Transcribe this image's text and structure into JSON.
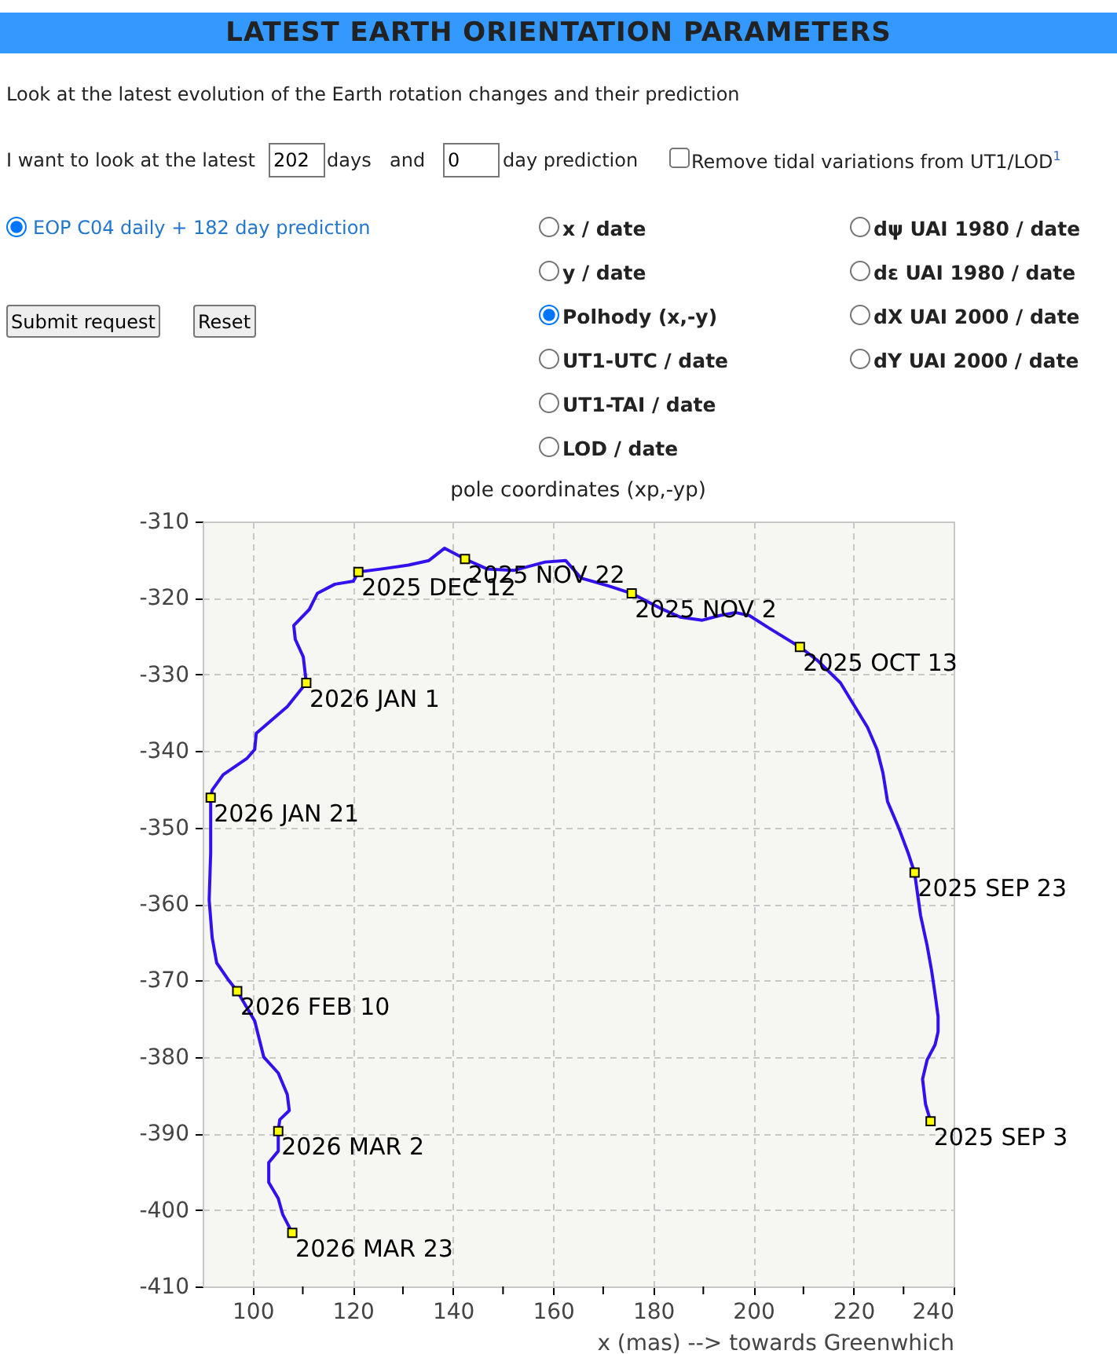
{
  "chart_data": {
    "type": "line",
    "title": "pole coordinates (xp,-yp)",
    "xlabel": "x (mas) --> towards Greenwhich",
    "xlim": [
      90,
      240
    ],
    "ylim": [
      -410,
      -310
    ],
    "xticks": [
      100,
      {
        "value": 110,
        "label": null
      },
      120,
      {
        "value": 130,
        "label": null
      },
      140,
      {
        "value": 150,
        "label": null
      },
      160,
      {
        "value": 170,
        "label": null
      },
      180,
      {
        "value": 190,
        "label": null
      },
      200,
      {
        "value": 210,
        "label": null
      },
      220,
      {
        "value": 230,
        "label": null
      },
      240
    ],
    "yticks": [
      -410,
      -400,
      -390,
      -380,
      -370,
      -360,
      -350,
      -340,
      -330,
      -320,
      -310
    ],
    "grid": true,
    "series": [
      {
        "color": "#3311ee",
        "marker": "none",
        "x": [
          235.4,
          234.4,
          233.8,
          234.7,
          236.3,
          236.9,
          236.9,
          236.3,
          235.6,
          234.7,
          233.4,
          232.2,
          230.9,
          229.0,
          226.8,
          225.9,
          224.7,
          222.8,
          219.9,
          217.4,
          212.7,
          209.3,
          203.3,
          199.2,
          196.4,
          193.3,
          189.8,
          185.4,
          181.3,
          175.7,
          171.0,
          165.6,
          162.5,
          158.4,
          152.1,
          146.8,
          142.4,
          138.3,
          135.2,
          131.1,
          125.8,
          121.1,
          120.1,
          116.4,
          112.9,
          111.3,
          108.2,
          108.5,
          110.1,
          110.7,
          106.9,
          100.7,
          100.4,
          98.8,
          94.1,
          91.9,
          91.6,
          91.6,
          91.3,
          91.9,
          92.8,
          95.0,
          96.9,
          100.4,
          102.2,
          105.1,
          106.9,
          107.3,
          105.4,
          105.1,
          105.1,
          103.2,
          103.2,
          105.1,
          106.0,
          107.9
        ],
        "values": [
          -388.4,
          -386.2,
          -382.9,
          -380.4,
          -378.4,
          -376.7,
          -374.7,
          -371.8,
          -368.7,
          -365.4,
          -361.5,
          -355.9,
          -353.3,
          -350.0,
          -346.6,
          -342.9,
          -339.8,
          -336.9,
          -333.8,
          -331.1,
          -328.1,
          -326.4,
          -324.0,
          -322.3,
          -321.9,
          -322.3,
          -322.9,
          -322.5,
          -321.3,
          -319.4,
          -318.4,
          -317.4,
          -315.1,
          -315.3,
          -316.4,
          -316.2,
          -314.9,
          -313.5,
          -315.1,
          -315.7,
          -316.2,
          -316.6,
          -317.8,
          -318.2,
          -319.4,
          -321.5,
          -323.6,
          -325.4,
          -327.7,
          -331.1,
          -334.2,
          -337.7,
          -339.8,
          -341.0,
          -343.1,
          -345.1,
          -346.1,
          -353.3,
          -359.5,
          -364.4,
          -367.7,
          -369.8,
          -371.4,
          -375.3,
          -380.0,
          -382.1,
          -384.9,
          -387.0,
          -388.2,
          -389.7,
          -392.3,
          -393.8,
          -396.4,
          -398.5,
          -400.6,
          -403.0
        ]
      },
      {
        "type": "scatter",
        "color": "#ffff00",
        "marker": "square",
        "x": [
          235.4,
          232.2,
          209.3,
          175.7,
          142.4,
          121.1,
          110.7,
          91.6,
          96.9,
          105.1,
          107.9
        ],
        "values": [
          -388.4,
          -355.9,
          -326.4,
          -319.4,
          -314.9,
          -316.6,
          -331.1,
          -346.1,
          -371.4,
          -389.7,
          -403.0
        ]
      }
    ],
    "annotations": [
      "LATEST EARTH ORIENTATION PARAMETERS",
      "Look at the latest evolution of the Earth rotation changes and their prediction",
      "I want to look at the latest",
      "202",
      "days",
      "and",
      "0",
      "day prediction",
      "Remove tidal variations from UT1/LOD$^{1}$",
      "EOP C04 daily + 182 day prediction",
      "Submit request",
      "Reset",
      "x / date",
      "y / date",
      "Polhody (x,-y)",
      "UT1-UTC / date",
      "UT1-TAI / date",
      "LOD / date",
      "dψ UAI 1980 / date",
      "dε UAI 1980 / date",
      "dX UAI 2000 / date",
      "dY UAI 2000 / date",
      {
        "text": "2025 SEP 3",
        "x": 235.4,
        "y": -388.4
      },
      {
        "text": "2025 SEP 23",
        "x": 232.2,
        "y": -355.9
      },
      {
        "text": "2025 OCT 13",
        "x": 209.3,
        "y": -326.4
      },
      {
        "text": "2025 NOV 2",
        "x": 175.7,
        "y": -319.4
      },
      {
        "text": "2025 NOV 22",
        "x": 142.4,
        "y": -314.9
      },
      {
        "text": "2025 DEC 12",
        "x": 121.1,
        "y": -316.6
      },
      {
        "text": "2026 JAN 1",
        "x": 110.7,
        "y": -331.1
      },
      {
        "text": "2026 JAN 21",
        "x": 91.6,
        "y": -346.1
      },
      {
        "text": "2026 FEB 10",
        "x": 96.9,
        "y": -371.4
      },
      {
        "text": "2026 MAR 2",
        "x": 105.1,
        "y": -389.7
      },
      {
        "text": "2026 MAR 23",
        "x": 107.9,
        "y": -403.0
      }
    ]
  }
}
